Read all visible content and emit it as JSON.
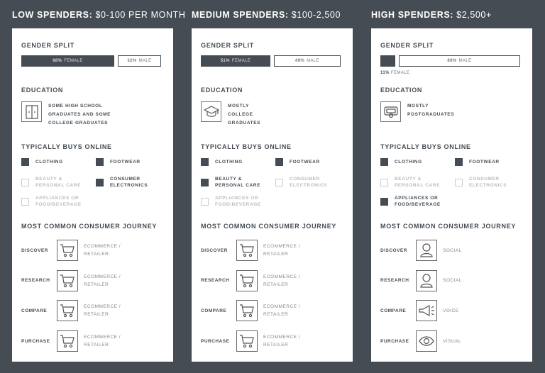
{
  "colors": {
    "background": "#454c53",
    "panel": "#ffffff",
    "accent": "#454c53"
  },
  "labels": {
    "gender": "GENDER SPLIT",
    "education": "EDUCATION",
    "buys": "TYPICALLY BUYS ONLINE",
    "journey": "MOST COMMON CONSUMER JOURNEY"
  },
  "panels": [
    {
      "title_bold": "LOW SPENDERS:",
      "title_rest": "$0-100 PER MONTH",
      "gender": {
        "female_pct": 68,
        "female_value": "68%",
        "female_label": "FEMALE",
        "male_value": "32%",
        "male_label": "MALE",
        "female_outside": false
      },
      "education": {
        "icon": "lockers-icon",
        "lines": [
          "SOME HIGH SCHOOL",
          "GRADUATES AND SOME",
          "COLLEGE GRADUATES"
        ]
      },
      "buys": [
        {
          "lines": [
            "CLOTHING"
          ],
          "checked": true
        },
        {
          "lines": [
            "FOOTWEAR"
          ],
          "checked": true
        },
        {
          "lines": [
            "BEAUTY &",
            "PERSONAL CARE"
          ],
          "checked": false
        },
        {
          "lines": [
            "CONSUMER",
            "ELECTRONICS"
          ],
          "checked": true
        },
        {
          "lines": [
            "APPLIANCES OR",
            "FOOD/BEVERAGE"
          ],
          "checked": false
        }
      ],
      "journey": [
        {
          "stage": "DISCOVER",
          "icon": "cart-icon",
          "lines": [
            "ECOMMERCE /",
            "RETAILER"
          ]
        },
        {
          "stage": "RESEARCH",
          "icon": "cart-icon",
          "lines": [
            "ECOMMERCE /",
            "RETAILER"
          ]
        },
        {
          "stage": "COMPARE",
          "icon": "cart-icon",
          "lines": [
            "ECOMMERCE /",
            "RETAILER"
          ]
        },
        {
          "stage": "PURCHASE",
          "icon": "cart-icon",
          "lines": [
            "ECOMMERCE /",
            "RETAILER"
          ]
        }
      ]
    },
    {
      "title_bold": "MEDIUM SPENDERS:",
      "title_rest": "$100-2,500",
      "gender": {
        "female_pct": 51,
        "female_value": "51%",
        "female_label": "FEMALE",
        "male_value": "49%",
        "male_label": "MALE",
        "female_outside": false
      },
      "education": {
        "icon": "graduation-cap-icon",
        "lines": [
          "MOSTLY",
          "COLLEGE",
          "GRADUATES"
        ]
      },
      "buys": [
        {
          "lines": [
            "CLOTHING"
          ],
          "checked": true
        },
        {
          "lines": [
            "FOOTWEAR"
          ],
          "checked": true
        },
        {
          "lines": [
            "BEAUTY &",
            "PERSONAL CARE"
          ],
          "checked": true
        },
        {
          "lines": [
            "CONSUMER",
            "ELECTRONICS"
          ],
          "checked": false
        },
        {
          "lines": [
            "APPLIANCES OR",
            "FOOD/BEVERAGE"
          ],
          "checked": false
        }
      ],
      "journey": [
        {
          "stage": "DISCOVER",
          "icon": "cart-icon",
          "lines": [
            "ECOMMERCE /",
            "RETAILER"
          ]
        },
        {
          "stage": "RESEARCH",
          "icon": "cart-icon",
          "lines": [
            "ECOMMERCE /",
            "RETAILER"
          ]
        },
        {
          "stage": "COMPARE",
          "icon": "cart-icon",
          "lines": [
            "ECOMMERCE /",
            "RETAILER"
          ]
        },
        {
          "stage": "PURCHASE",
          "icon": "cart-icon",
          "lines": [
            "ECOMMERCE /",
            "RETAILER"
          ]
        }
      ]
    },
    {
      "title_bold": "HIGH SPENDERS:",
      "title_rest": "$2,500+",
      "gender": {
        "female_pct": 11,
        "female_value": "11%",
        "female_label": "FEMALE",
        "male_value": "89%",
        "male_label": "MALE",
        "female_outside": true
      },
      "education": {
        "icon": "diploma-icon",
        "lines": [
          "MOSTLY",
          "POSTGRADUATES"
        ]
      },
      "buys": [
        {
          "lines": [
            "CLOTHING"
          ],
          "checked": true
        },
        {
          "lines": [
            "FOOTWEAR"
          ],
          "checked": true
        },
        {
          "lines": [
            "BEAUTY &",
            "PERSONAL CARE"
          ],
          "checked": false
        },
        {
          "lines": [
            "CONSUMER",
            "ELECTRONICS"
          ],
          "checked": false
        },
        {
          "lines": [
            "APPLIANCES OR",
            "FOOD/BEVERAGE"
          ],
          "checked": true
        }
      ],
      "journey": [
        {
          "stage": "DISCOVER",
          "icon": "person-icon",
          "lines": [
            "SOCIAL"
          ]
        },
        {
          "stage": "RESEARCH",
          "icon": "person-icon",
          "lines": [
            "SOCIAL"
          ]
        },
        {
          "stage": "COMPARE",
          "icon": "megaphone-icon",
          "lines": [
            "VOICE"
          ]
        },
        {
          "stage": "PURCHASE",
          "icon": "eye-icon",
          "lines": [
            "VISUAL"
          ]
        }
      ]
    }
  ]
}
